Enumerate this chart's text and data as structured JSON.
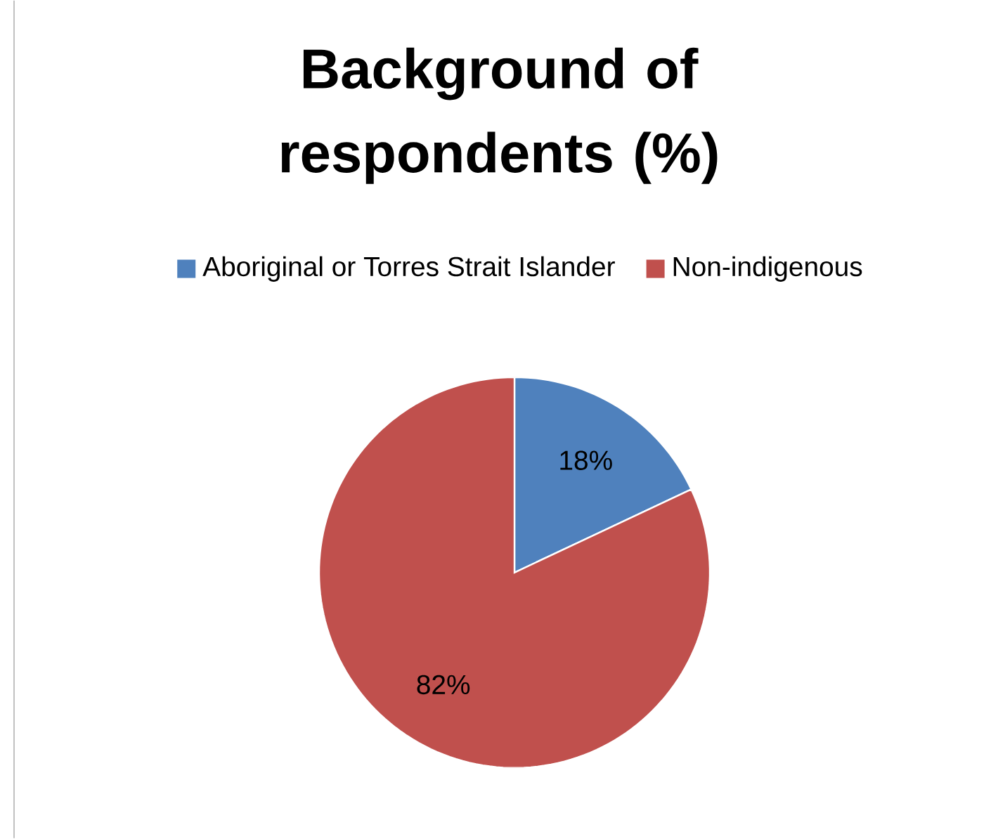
{
  "chart_data": {
    "type": "pie",
    "title": "Background of respondents (%)",
    "categories": [
      "Aboriginal or Torres Strait Islander",
      "Non-indigenous"
    ],
    "values": [
      18,
      82
    ],
    "colors": [
      "#4f81bd",
      "#c0504d"
    ],
    "value_labels": [
      "18%",
      "82%"
    ],
    "legend": "top"
  }
}
